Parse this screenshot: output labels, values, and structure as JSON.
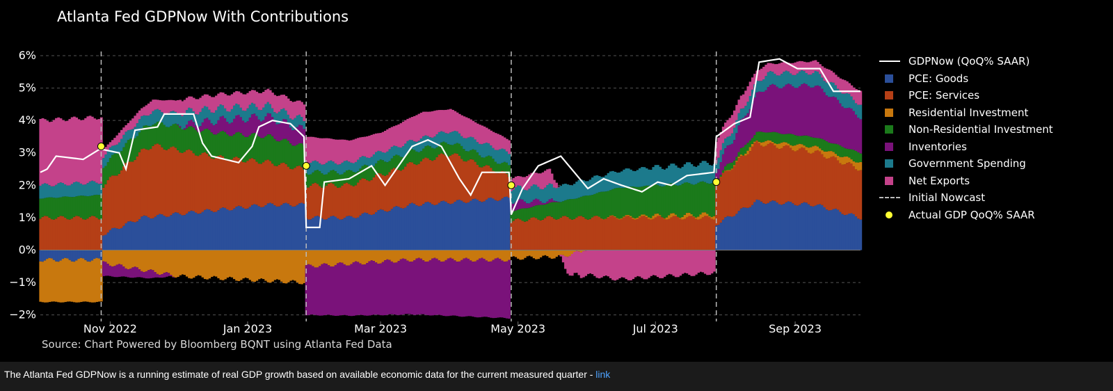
{
  "caption": {
    "text": "The Atlanta Fed GDPNow is a running estimate of real GDP growth based on available economic data for the current measured quarter - ",
    "link_text": "link"
  },
  "chart_data": {
    "type": "bar",
    "title": "Atlanta Fed GDPNow With Contributions",
    "source": "Source: Chart Powered by Bloomberg BQNT using Atlanta Fed Data",
    "ylim": [
      -2.2,
      6.3
    ],
    "y_ticks": [
      -2,
      -1,
      0,
      1,
      2,
      3,
      4,
      5,
      6
    ],
    "y_tick_labels": [
      "−2%",
      "−1%",
      "0%",
      "1%",
      "2%",
      "3%",
      "4%",
      "5%",
      "6%"
    ],
    "x_start": "2022-10-01",
    "x_end": "2023-09-30",
    "x_ticks": [
      {
        "date": "2022-11-01",
        "label": "Nov 2022"
      },
      {
        "date": "2023-01-01",
        "label": "Jan 2023"
      },
      {
        "date": "2023-03-01",
        "label": "Mar 2023"
      },
      {
        "date": "2023-05-01",
        "label": "May 2023"
      },
      {
        "date": "2023-07-01",
        "label": "Jul 2023"
      },
      {
        "date": "2023-09-01",
        "label": "Sep 2023"
      }
    ],
    "grid": "dashed horizontal",
    "legend_position": "right",
    "colors": {
      "pce_goods": "#2b4f9a",
      "pce_services": "#b53f16",
      "residential": "#c8780e",
      "nonres": "#1b7a1b",
      "inventories": "#7a127a",
      "gov": "#1c7a8c",
      "netexp": "#c4428a",
      "gdpnow": "#ffffff",
      "initial": "#bbbbbb",
      "actual": "#ffff33"
    },
    "series": [
      {
        "key": "pce_goods",
        "name": "PCE: Goods",
        "knots": [
          [
            "2022-10-01",
            -0.3
          ],
          [
            "2022-10-28",
            -0.3
          ],
          [
            "2022-10-29",
            0.5
          ],
          [
            "2022-11-15",
            1.0
          ],
          [
            "2023-01-10",
            1.4
          ],
          [
            "2023-01-26",
            1.4
          ],
          [
            "2023-01-27",
            1.0
          ],
          [
            "2023-02-15",
            1.0
          ],
          [
            "2023-03-15",
            1.4
          ],
          [
            "2023-04-27",
            1.6
          ],
          [
            "2023-04-28",
            0.0
          ],
          [
            "2023-06-01",
            0.0
          ],
          [
            "2023-07-27",
            0.0
          ],
          [
            "2023-07-28",
            0.8
          ],
          [
            "2023-08-15",
            1.5
          ],
          [
            "2023-09-10",
            1.4
          ],
          [
            "2023-09-30",
            1.0
          ]
        ]
      },
      {
        "key": "pce_services",
        "name": "PCE: Services",
        "knots": [
          [
            "2022-10-01",
            1.0
          ],
          [
            "2022-10-28",
            1.0
          ],
          [
            "2022-10-29",
            1.5
          ],
          [
            "2022-11-20",
            2.2
          ],
          [
            "2022-12-20",
            1.6
          ],
          [
            "2023-01-26",
            1.1
          ],
          [
            "2023-01-27",
            1.0
          ],
          [
            "2023-02-15",
            1.0
          ],
          [
            "2023-03-10",
            1.2
          ],
          [
            "2023-04-01",
            1.5
          ],
          [
            "2023-04-27",
            0.7
          ],
          [
            "2023-04-28",
            0.9
          ],
          [
            "2023-05-15",
            1.0
          ],
          [
            "2023-06-15",
            1.0
          ],
          [
            "2023-07-27",
            1.0
          ],
          [
            "2023-07-28",
            1.3
          ],
          [
            "2023-08-15",
            1.8
          ],
          [
            "2023-09-15",
            1.6
          ],
          [
            "2023-09-30",
            1.5
          ]
        ]
      },
      {
        "key": "residential",
        "name": "Residential Investment",
        "knots": [
          [
            "2022-10-01",
            -1.3
          ],
          [
            "2022-10-28",
            -1.3
          ],
          [
            "2022-10-29",
            -0.4
          ],
          [
            "2022-12-01",
            -0.8
          ],
          [
            "2023-01-26",
            -1.0
          ],
          [
            "2023-01-27",
            -0.5
          ],
          [
            "2023-03-15",
            -0.3
          ],
          [
            "2023-04-27",
            -0.3
          ],
          [
            "2023-04-28",
            -0.25
          ],
          [
            "2023-05-20",
            -0.2
          ],
          [
            "2023-06-01",
            0.0
          ],
          [
            "2023-07-27",
            0.1
          ],
          [
            "2023-07-28",
            0.0
          ],
          [
            "2023-08-20",
            0.1
          ],
          [
            "2023-09-30",
            0.2
          ]
        ]
      },
      {
        "key": "nonres",
        "name": "Non-Residential Investment",
        "knots": [
          [
            "2022-10-01",
            0.6
          ],
          [
            "2022-10-28",
            0.7
          ],
          [
            "2022-10-29",
            0.6
          ],
          [
            "2022-11-20",
            0.7
          ],
          [
            "2023-01-10",
            0.8
          ],
          [
            "2023-01-26",
            0.7
          ],
          [
            "2023-01-27",
            0.4
          ],
          [
            "2023-03-01",
            0.4
          ],
          [
            "2023-04-27",
            0.3
          ],
          [
            "2023-04-28",
            0.3
          ],
          [
            "2023-05-20",
            0.5
          ],
          [
            "2023-06-15",
            0.9
          ],
          [
            "2023-07-27",
            1.0
          ],
          [
            "2023-07-28",
            0.1
          ],
          [
            "2023-08-20",
            0.3
          ],
          [
            "2023-09-30",
            0.3
          ]
        ]
      },
      {
        "key": "inventories",
        "name": "Inventories",
        "knots": [
          [
            "2022-10-01",
            0.0
          ],
          [
            "2022-10-28",
            0.0
          ],
          [
            "2022-10-29",
            -0.4
          ],
          [
            "2022-11-20",
            -0.2
          ],
          [
            "2022-12-20",
            0.4
          ],
          [
            "2023-01-10",
            0.6
          ],
          [
            "2023-01-26",
            0.5
          ],
          [
            "2023-01-27",
            -1.5
          ],
          [
            "2023-02-15",
            -1.6
          ],
          [
            "2023-04-27",
            -1.8
          ],
          [
            "2023-04-28",
            0.3
          ],
          [
            "2023-05-20",
            0.0
          ],
          [
            "2023-07-27",
            0.0
          ],
          [
            "2023-07-28",
            0.3
          ],
          [
            "2023-08-20",
            1.4
          ],
          [
            "2023-09-10",
            1.6
          ],
          [
            "2023-09-30",
            1.1
          ]
        ]
      },
      {
        "key": "gov",
        "name": "Government Spending",
        "knots": [
          [
            "2022-10-01",
            0.4
          ],
          [
            "2022-10-28",
            0.4
          ],
          [
            "2022-10-29",
            0.3
          ],
          [
            "2022-12-01",
            0.4
          ],
          [
            "2023-01-26",
            0.3
          ],
          [
            "2023-01-27",
            0.3
          ],
          [
            "2023-03-01",
            0.3
          ],
          [
            "2023-04-27",
            0.4
          ],
          [
            "2023-04-28",
            0.4
          ],
          [
            "2023-06-01",
            0.5
          ],
          [
            "2023-07-27",
            0.6
          ],
          [
            "2023-07-28",
            0.3
          ],
          [
            "2023-08-20",
            0.4
          ],
          [
            "2023-09-30",
            0.4
          ]
        ]
      },
      {
        "key": "netexp",
        "name": "Net Exports",
        "knots": [
          [
            "2022-10-01",
            2.0
          ],
          [
            "2022-10-28",
            2.0
          ],
          [
            "2022-10-29",
            0.2
          ],
          [
            "2022-12-01",
            0.4
          ],
          [
            "2023-01-26",
            0.5
          ],
          [
            "2023-01-27",
            0.8
          ],
          [
            "2023-03-01",
            0.6
          ],
          [
            "2023-03-20",
            0.8
          ],
          [
            "2023-04-27",
            0.4
          ],
          [
            "2023-04-28",
            0.3
          ],
          [
            "2023-05-15",
            0.5
          ],
          [
            "2023-05-25",
            -0.7
          ],
          [
            "2023-06-15",
            -0.9
          ],
          [
            "2023-07-27",
            -0.7
          ],
          [
            "2023-07-28",
            0.6
          ],
          [
            "2023-08-20",
            0.3
          ],
          [
            "2023-09-30",
            0.4
          ]
        ]
      }
    ],
    "gdpnow": {
      "name": "GDPNow (QoQ% SAAR)",
      "knots": [
        [
          "2022-10-01",
          2.4
        ],
        [
          "2022-10-04",
          2.5
        ],
        [
          "2022-10-08",
          2.9
        ],
        [
          "2022-10-20",
          2.8
        ],
        [
          "2022-10-27",
          3.1
        ],
        [
          "2022-10-28",
          3.1
        ],
        [
          "2022-10-29",
          3.1
        ],
        [
          "2022-11-05",
          3.0
        ],
        [
          "2022-11-08",
          2.5
        ],
        [
          "2022-11-12",
          3.7
        ],
        [
          "2022-11-22",
          3.8
        ],
        [
          "2022-11-25",
          4.2
        ],
        [
          "2022-12-08",
          4.2
        ],
        [
          "2022-12-12",
          3.3
        ],
        [
          "2022-12-16",
          2.9
        ],
        [
          "2022-12-28",
          2.7
        ],
        [
          "2023-01-03",
          3.2
        ],
        [
          "2023-01-06",
          3.8
        ],
        [
          "2023-01-12",
          4.0
        ],
        [
          "2023-01-20",
          3.9
        ],
        [
          "2023-01-26",
          3.5
        ],
        [
          "2023-01-27",
          0.7
        ],
        [
          "2023-02-02",
          0.7
        ],
        [
          "2023-02-04",
          2.1
        ],
        [
          "2023-02-15",
          2.2
        ],
        [
          "2023-02-25",
          2.6
        ],
        [
          "2023-03-03",
          2.0
        ],
        [
          "2023-03-09",
          2.6
        ],
        [
          "2023-03-15",
          3.2
        ],
        [
          "2023-03-22",
          3.4
        ],
        [
          "2023-03-28",
          3.2
        ],
        [
          "2023-04-05",
          2.2
        ],
        [
          "2023-04-10",
          1.7
        ],
        [
          "2023-04-15",
          2.4
        ],
        [
          "2023-04-27",
          2.4
        ],
        [
          "2023-04-28",
          1.1
        ],
        [
          "2023-05-03",
          1.9
        ],
        [
          "2023-05-10",
          2.6
        ],
        [
          "2023-05-20",
          2.9
        ],
        [
          "2023-06-01",
          1.9
        ],
        [
          "2023-06-08",
          2.2
        ],
        [
          "2023-06-16",
          2.0
        ],
        [
          "2023-06-25",
          1.8
        ],
        [
          "2023-07-02",
          2.1
        ],
        [
          "2023-07-08",
          2.0
        ],
        [
          "2023-07-15",
          2.3
        ],
        [
          "2023-07-27",
          2.4
        ],
        [
          "2023-07-28",
          3.5
        ],
        [
          "2023-08-05",
          3.9
        ],
        [
          "2023-08-12",
          4.1
        ],
        [
          "2023-08-16",
          5.8
        ],
        [
          "2023-08-25",
          5.9
        ],
        [
          "2023-09-02",
          5.6
        ],
        [
          "2023-09-12",
          5.6
        ],
        [
          "2023-09-18",
          4.9
        ],
        [
          "2023-09-30",
          4.9
        ]
      ]
    },
    "initial_nowcast": {
      "name": "Initial Nowcast",
      "dates": [
        "2022-10-28",
        "2023-01-27",
        "2023-04-28",
        "2023-07-28"
      ]
    },
    "actual": {
      "name": "Actual GDP QoQ% SAAR",
      "points": [
        [
          "2022-10-28",
          3.2
        ],
        [
          "2023-01-27",
          2.6
        ],
        [
          "2023-04-28",
          2.0
        ],
        [
          "2023-07-28",
          2.1
        ]
      ]
    }
  }
}
